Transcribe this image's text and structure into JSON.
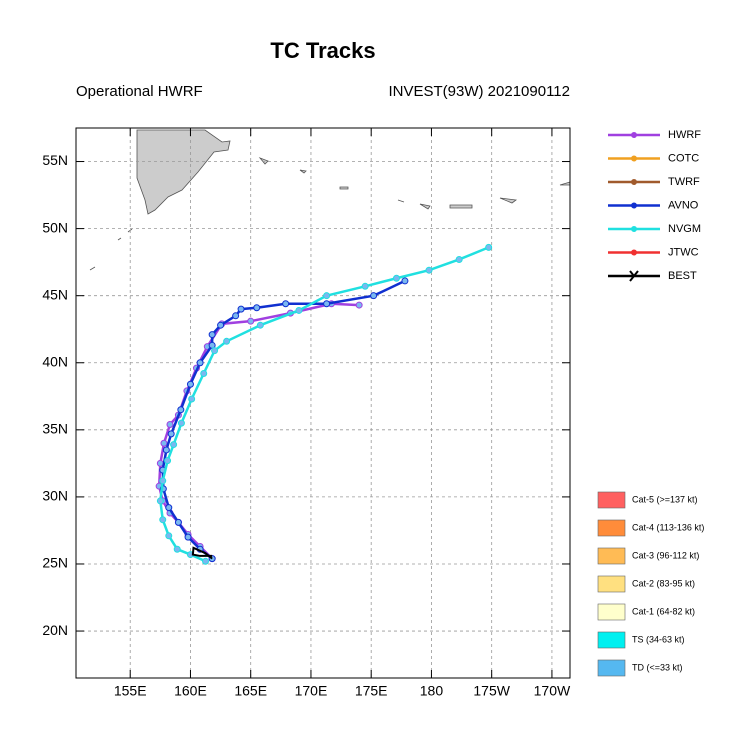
{
  "chart_data": {
    "type": "line",
    "title": "TC Tracks",
    "subtitle_left": "Operational HWRF",
    "subtitle_right": "INVEST(93W) 2021090112",
    "xlim": [
      150.5,
      191.5
    ],
    "ylim": [
      16.5,
      57.5
    ],
    "xticks": [
      {
        "value": 155,
        "label": "155E"
      },
      {
        "value": 160,
        "label": "160E"
      },
      {
        "value": 165,
        "label": "165E"
      },
      {
        "value": 170,
        "label": "170E"
      },
      {
        "value": 175,
        "label": "175E"
      },
      180,
      {
        "value": 185,
        "label": "175W"
      },
      {
        "value": 190,
        "label": "170W"
      }
    ],
    "yticks": [
      {
        "value": 20,
        "label": "20N"
      },
      {
        "value": 25,
        "label": "25N"
      },
      {
        "value": 30,
        "label": "30N"
      },
      {
        "value": 35,
        "label": "35N"
      },
      {
        "value": 40,
        "label": "40N"
      },
      {
        "value": 45,
        "label": "45N"
      },
      {
        "value": 50,
        "label": "50N"
      },
      {
        "value": 55,
        "label": "55N"
      }
    ],
    "grid": true,
    "series": [
      {
        "name": "HWRF",
        "color": "#a040e0",
        "x": [
          161.8,
          160.8,
          159.8,
          159.0,
          158.3,
          157.7,
          157.4,
          157.5,
          157.8,
          158.3,
          159.0,
          159.7,
          160.5,
          161.4,
          162.6,
          165.0,
          168.3,
          171.7,
          174.0
        ],
        "values": [
          25.4,
          26.3,
          27.2,
          28.1,
          28.8,
          29.7,
          30.8,
          32.5,
          34.0,
          35.4,
          36.1,
          37.9,
          39.6,
          41.2,
          42.9,
          43.1,
          43.7,
          44.4,
          44.3
        ]
      },
      {
        "name": "COTC",
        "color": "#f0a020",
        "x": [],
        "values": []
      },
      {
        "name": "TWRF",
        "color": "#a05a2c",
        "x": [],
        "values": []
      },
      {
        "name": "AVNO",
        "color": "#1030d0",
        "x": [
          161.8,
          160.8,
          159.8,
          159.0,
          158.2,
          157.75,
          157.7,
          158.0,
          158.4,
          159.2,
          160.0,
          160.8,
          161.8,
          161.8,
          162.5,
          163.75,
          164.2,
          165.5,
          167.9,
          171.3,
          175.2,
          177.8
        ],
        "values": [
          25.4,
          26.1,
          27.0,
          28.1,
          29.2,
          30.6,
          32.0,
          33.5,
          34.7,
          36.5,
          38.4,
          40.0,
          41.3,
          42.1,
          42.8,
          43.5,
          44.0,
          44.1,
          44.4,
          44.4,
          45.0,
          46.1
        ]
      },
      {
        "name": "NVGM",
        "color": "#20e0e0",
        "x": [
          161.25,
          160.0,
          158.9,
          158.2,
          157.7,
          157.5,
          157.7,
          158.1,
          158.6,
          159.25,
          160.1,
          161.1,
          162.0,
          163.0,
          165.8,
          169.0,
          171.3,
          174.5,
          177.1,
          179.8,
          182.3,
          184.75
        ],
        "values": [
          25.2,
          25.7,
          26.1,
          27.1,
          28.3,
          29.7,
          31.2,
          32.7,
          33.9,
          35.5,
          37.3,
          39.2,
          40.9,
          41.6,
          42.8,
          43.9,
          45.0,
          45.7,
          46.3,
          46.9,
          47.7,
          48.6
        ]
      },
      {
        "name": "JTWC",
        "color": "#f03030",
        "x": [],
        "values": []
      },
      {
        "name": "BEST",
        "color": "#000000",
        "x": [
          161.8,
          161.25,
          160.25,
          160.2,
          160.8,
          161.8
        ],
        "values": [
          25.4,
          25.8,
          26.2,
          25.7,
          25.6,
          25.6
        ]
      }
    ],
    "intensity_legend": [
      {
        "label": "Cat-5 (>=137 kt)",
        "color": "#ff6060"
      },
      {
        "label": "Cat-4 (113-136 kt)",
        "color": "#ff8c3a"
      },
      {
        "label": "Cat-3 (96-112 kt)",
        "color": "#ffbb55"
      },
      {
        "label": "Cat-2 (83-95 kt)",
        "color": "#ffe080"
      },
      {
        "label": "Cat-1 (64-82 kt)",
        "color": "#ffffcc"
      },
      {
        "label": "TS (34-63 kt)",
        "color": "#00f0f0"
      },
      {
        "label": "TD (<=33 kt)",
        "color": "#55b8f0"
      }
    ]
  }
}
